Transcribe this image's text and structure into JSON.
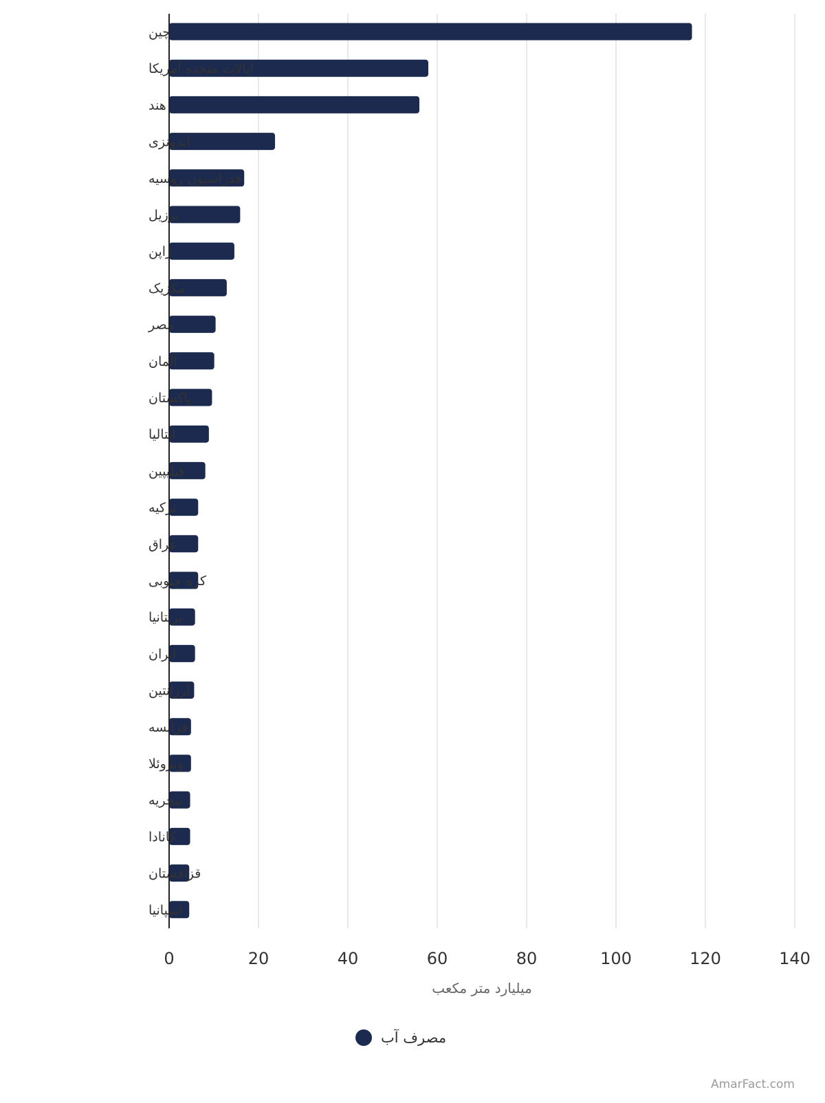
{
  "chart_data": {
    "type": "bar",
    "orientation": "horizontal",
    "categories": [
      "چین",
      "ایالات متحده آمریکا",
      "هند",
      "اندونزی",
      "فدراسیون روسیه",
      "برزیل",
      "ژاپن",
      "مکزیک",
      "مصر",
      "آلمان",
      "پاکستان",
      "ایتالیا",
      "فیلیپین",
      "ترکیه",
      "عراق",
      "کره جنوبی",
      "بریتانیا",
      "ایران",
      "آرژانتین",
      "فرانسه",
      "ونزوئلا",
      "نیجریه",
      "کانادا",
      "قزاقستان",
      "اسپانیا"
    ],
    "series": [
      {
        "name": "مصرف آب",
        "values": [
          117,
          58,
          56,
          23.7,
          16.8,
          15.9,
          14.6,
          12.9,
          10.4,
          10.1,
          9.6,
          8.9,
          8.1,
          6.5,
          6.5,
          6.5,
          5.8,
          5.8,
          5.6,
          4.9,
          4.9,
          4.7,
          4.7,
          4.5,
          4.5
        ],
        "color": "#1b2a4e"
      }
    ],
    "xlim": [
      0,
      140
    ],
    "xticks": [
      "0",
      "20",
      "40",
      "60",
      "80",
      "100",
      "120",
      "140"
    ],
    "xlabel": "میلیارد متر مکعب",
    "ylabel": "",
    "title": "",
    "grid": "vertical",
    "legend": "bottom-center"
  },
  "watermark": "AmarFact.com",
  "colors": {
    "bar": "#1b2a4e",
    "grid": "#e0e0e0",
    "axis": "#222222"
  }
}
